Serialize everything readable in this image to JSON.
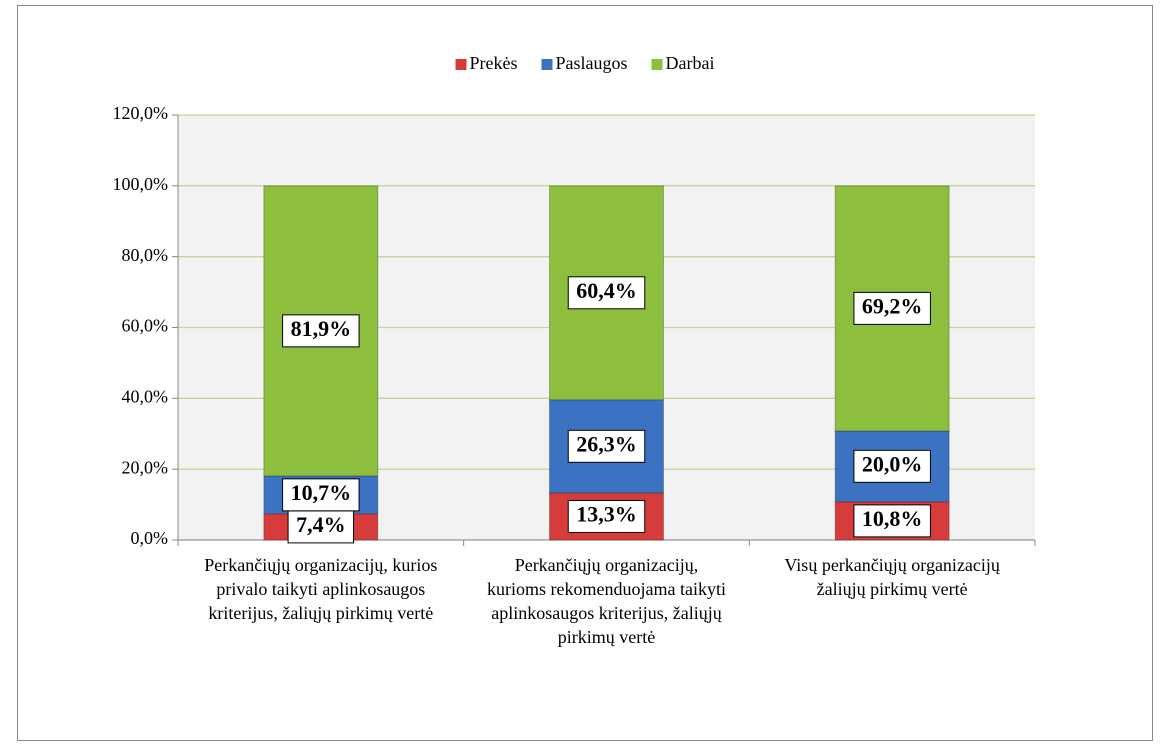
{
  "chart_data": {
    "type": "stacked_bar",
    "categories": [
      "Perkančiųjų organizacijų, kurios privalo taikyti aplinkosaugos kriterijus, žaliųjų pirkimų vertė",
      "Perkančiųjų organizacijų, kurioms rekomenduojama taikyti aplinkosaugos kriterijus, žaliųjų pirkimų vertė",
      "Visų perkančiųjų organizacijų žaliųjų pirkimų vertė"
    ],
    "series": [
      {
        "name": "Prekės",
        "color": "#d63c3c",
        "values": [
          7.4,
          13.3,
          10.8
        ],
        "value_labels": [
          "7,4%",
          "13,3%",
          "10,8%"
        ]
      },
      {
        "name": "Paslaugos",
        "color": "#3b72c2",
        "values": [
          10.7,
          26.3,
          20.0
        ],
        "value_labels": [
          "10,7%",
          "26,3%",
          "20,0%"
        ]
      },
      {
        "name": "Darbai",
        "color": "#8dbe3e",
        "values": [
          81.9,
          60.4,
          69.2
        ],
        "value_labels": [
          "81,9%",
          "60,4%",
          "69,2%"
        ]
      }
    ],
    "ylim": [
      0,
      120
    ],
    "yticks": [
      {
        "value": 0,
        "label": "0,0%"
      },
      {
        "value": 20,
        "label": "20,0%"
      },
      {
        "value": 40,
        "label": "40,0%"
      },
      {
        "value": 60,
        "label": "60,0%"
      },
      {
        "value": 80,
        "label": "80,0%"
      },
      {
        "value": 100,
        "label": "100,0%"
      },
      {
        "value": 120,
        "label": "120,0%"
      }
    ],
    "grid": true,
    "legend": "top"
  }
}
